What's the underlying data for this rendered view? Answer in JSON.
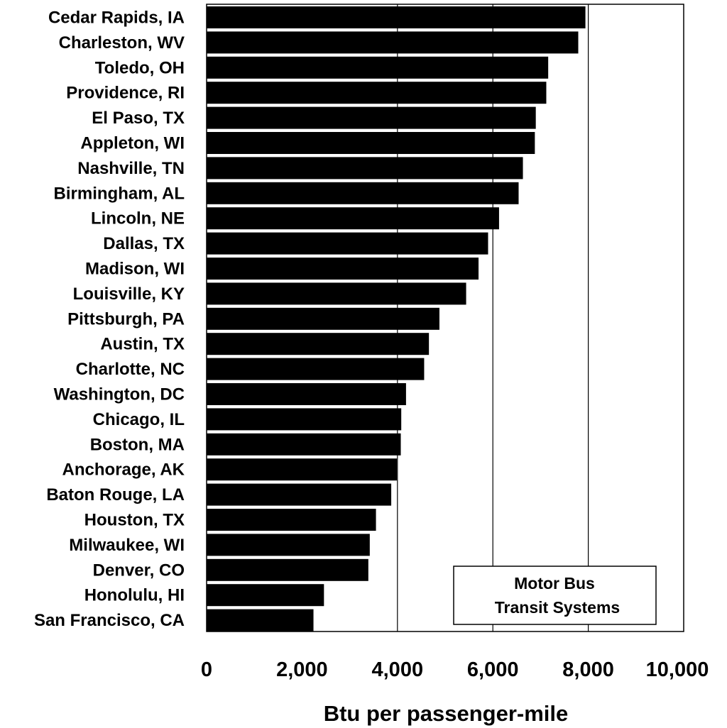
{
  "chart_data": {
    "type": "bar",
    "orientation": "horizontal",
    "categories": [
      "Cedar Rapids, IA",
      "Charleston, WV",
      "Toledo, OH",
      "Providence, RI",
      "El Paso, TX",
      "Appleton, WI",
      "Nashville, TN",
      "Birmingham, AL",
      "Lincoln, NE",
      "Dallas, TX",
      "Madison, WI",
      "Louisville, KY",
      "Pittsburgh, PA",
      "Austin, TX",
      "Charlotte, NC",
      "Washington, DC",
      "Chicago, IL",
      "Boston, MA",
      "Anchorage, AK",
      "Baton Rouge, LA",
      "Houston, TX",
      "Milwaukee, WI",
      "Denver, CO",
      "Honolulu, HI",
      "San Francisco, CA"
    ],
    "values": [
      7940,
      7790,
      7160,
      7120,
      6900,
      6880,
      6630,
      6540,
      6130,
      5900,
      5700,
      5440,
      4880,
      4660,
      4560,
      4180,
      4080,
      4070,
      3990,
      3870,
      3550,
      3420,
      3390,
      2460,
      2240
    ],
    "xlabel": "Btu per passenger-mile",
    "ylabel": "",
    "xlim": [
      0,
      10000
    ],
    "x_ticks": [
      0,
      2000,
      4000,
      6000,
      8000,
      10000
    ],
    "x_tick_labels": [
      "0",
      "2,000",
      "4,000",
      "6,000",
      "8,000",
      "10,000"
    ],
    "grid": "vertical lines at 4,000, 6,000 and 8,000",
    "legend_position": "bottom-right",
    "legend_lines": [
      "Motor Bus",
      "Transit Systems"
    ],
    "colors": {
      "bar": "#000000",
      "background": "#ffffff",
      "frame": "#000000"
    }
  }
}
